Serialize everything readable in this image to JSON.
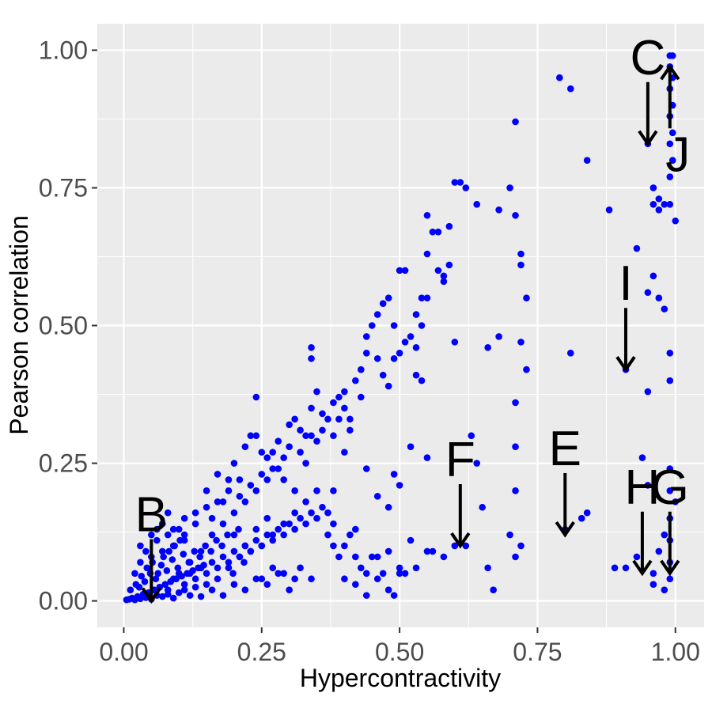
{
  "chart_data": {
    "type": "scatter",
    "title": "",
    "xlabel": "Hypercontractivity",
    "ylabel": "Pearson correlation",
    "xlim": [
      -0.048,
      1.052
    ],
    "ylim": [
      -0.048,
      1.048
    ],
    "grid": true,
    "colors": {
      "point": "#0000ff",
      "panel": "#ebebeb",
      "grid": "#ffffff",
      "annotation": "#000000"
    },
    "x_ticks": [
      {
        "value": 0.0,
        "label": "0.00"
      },
      {
        "value": 0.25,
        "label": "0.25"
      },
      {
        "value": 0.5,
        "label": "0.50"
      },
      {
        "value": 0.75,
        "label": "0.75"
      },
      {
        "value": 1.0,
        "label": "1.00"
      }
    ],
    "y_ticks": [
      {
        "value": 0.0,
        "label": "0.00"
      },
      {
        "value": 0.25,
        "label": "0.25"
      },
      {
        "value": 0.5,
        "label": "0.50"
      },
      {
        "value": 0.75,
        "label": "0.75"
      },
      {
        "value": 1.0,
        "label": "1.00"
      }
    ],
    "annotations": [
      {
        "label": "B",
        "x": 0.05,
        "y": 0.0,
        "direction": "down"
      },
      {
        "label": "C",
        "x": 0.95,
        "y": 0.83,
        "direction": "down"
      },
      {
        "label": "J",
        "x": 0.99,
        "y": 0.97,
        "direction": "up"
      },
      {
        "label": "I",
        "x": 0.91,
        "y": 0.42,
        "direction": "down"
      },
      {
        "label": "F",
        "x": 0.61,
        "y": 0.1,
        "direction": "down"
      },
      {
        "label": "E",
        "x": 0.8,
        "y": 0.12,
        "direction": "down"
      },
      {
        "label": "H",
        "x": 0.94,
        "y": 0.05,
        "direction": "down"
      },
      {
        "label": "G",
        "x": 0.99,
        "y": 0.05,
        "direction": "down"
      }
    ],
    "points": [
      [
        0.005,
        0.002
      ],
      [
        0.01,
        0.003
      ],
      [
        0.015,
        0.005
      ],
      [
        0.02,
        0.002
      ],
      [
        0.025,
        0.008
      ],
      [
        0.03,
        0.004
      ],
      [
        0.035,
        0.012
      ],
      [
        0.04,
        0.006
      ],
      [
        0.045,
        0.015
      ],
      [
        0.05,
        0.003
      ],
      [
        0.055,
        0.02
      ],
      [
        0.06,
        0.01
      ],
      [
        0.065,
        0.025
      ],
      [
        0.07,
        0.008
      ],
      [
        0.075,
        0.03
      ],
      [
        0.08,
        0.012
      ],
      [
        0.085,
        0.035
      ],
      [
        0.09,
        0.005
      ],
      [
        0.095,
        0.04
      ],
      [
        0.1,
        0.015
      ],
      [
        0.105,
        0.045
      ],
      [
        0.11,
        0.02
      ],
      [
        0.115,
        0.05
      ],
      [
        0.12,
        0.01
      ],
      [
        0.125,
        0.055
      ],
      [
        0.13,
        0.025
      ],
      [
        0.135,
        0.06
      ],
      [
        0.14,
        0.008
      ],
      [
        0.145,
        0.065
      ],
      [
        0.15,
        0.03
      ],
      [
        0.012,
        0.02
      ],
      [
        0.022,
        0.03
      ],
      [
        0.032,
        0.045
      ],
      [
        0.042,
        0.06
      ],
      [
        0.052,
        0.07
      ],
      [
        0.062,
        0.05
      ],
      [
        0.072,
        0.08
      ],
      [
        0.082,
        0.09
      ],
      [
        0.092,
        0.1
      ],
      [
        0.102,
        0.11
      ],
      [
        0.028,
        0.025
      ],
      [
        0.038,
        0.035
      ],
      [
        0.048,
        0.05
      ],
      [
        0.058,
        0.04
      ],
      [
        0.068,
        0.065
      ],
      [
        0.078,
        0.055
      ],
      [
        0.088,
        0.075
      ],
      [
        0.098,
        0.06
      ],
      [
        0.108,
        0.085
      ],
      [
        0.118,
        0.07
      ],
      [
        0.128,
        0.09
      ],
      [
        0.138,
        0.08
      ],
      [
        0.148,
        0.1
      ],
      [
        0.158,
        0.09
      ],
      [
        0.168,
        0.11
      ],
      [
        0.178,
        0.1
      ],
      [
        0.188,
        0.12
      ],
      [
        0.198,
        0.05
      ],
      [
        0.208,
        0.13
      ],
      [
        0.218,
        0.07
      ],
      [
        0.16,
        0.02
      ],
      [
        0.17,
        0.04
      ],
      [
        0.18,
        0.01
      ],
      [
        0.19,
        0.06
      ],
      [
        0.2,
        0.03
      ],
      [
        0.21,
        0.08
      ],
      [
        0.22,
        0.02
      ],
      [
        0.23,
        0.09
      ],
      [
        0.24,
        0.04
      ],
      [
        0.25,
        0.1
      ],
      [
        0.26,
        0.03
      ],
      [
        0.27,
        0.12
      ],
      [
        0.28,
        0.05
      ],
      [
        0.29,
        0.14
      ],
      [
        0.3,
        0.02
      ],
      [
        0.31,
        0.16
      ],
      [
        0.32,
        0.06
      ],
      [
        0.33,
        0.18
      ],
      [
        0.34,
        0.04
      ],
      [
        0.35,
        0.2
      ],
      [
        0.03,
        0.1
      ],
      [
        0.05,
        0.12
      ],
      [
        0.07,
        0.14
      ],
      [
        0.09,
        0.13
      ],
      [
        0.11,
        0.15
      ],
      [
        0.13,
        0.16
      ],
      [
        0.15,
        0.17
      ],
      [
        0.17,
        0.18
      ],
      [
        0.19,
        0.2
      ],
      [
        0.21,
        0.22
      ],
      [
        0.1,
        0.05
      ],
      [
        0.12,
        0.07
      ],
      [
        0.14,
        0.09
      ],
      [
        0.16,
        0.12
      ],
      [
        0.18,
        0.14
      ],
      [
        0.2,
        0.16
      ],
      [
        0.22,
        0.18
      ],
      [
        0.24,
        0.2
      ],
      [
        0.26,
        0.22
      ],
      [
        0.28,
        0.24
      ],
      [
        0.23,
        0.3
      ],
      [
        0.25,
        0.27
      ],
      [
        0.27,
        0.27
      ],
      [
        0.29,
        0.26
      ],
      [
        0.3,
        0.32
      ],
      [
        0.31,
        0.33
      ],
      [
        0.32,
        0.31
      ],
      [
        0.33,
        0.3
      ],
      [
        0.34,
        0.35
      ],
      [
        0.35,
        0.29
      ],
      [
        0.24,
        0.37
      ],
      [
        0.34,
        0.46
      ],
      [
        0.34,
        0.44
      ],
      [
        0.35,
        0.38
      ],
      [
        0.36,
        0.34
      ],
      [
        0.37,
        0.33
      ],
      [
        0.38,
        0.36
      ],
      [
        0.39,
        0.37
      ],
      [
        0.4,
        0.35
      ],
      [
        0.41,
        0.33
      ],
      [
        0.2,
        0.25
      ],
      [
        0.22,
        0.28
      ],
      [
        0.24,
        0.3
      ],
      [
        0.26,
        0.26
      ],
      [
        0.28,
        0.29
      ],
      [
        0.3,
        0.28
      ],
      [
        0.32,
        0.27
      ],
      [
        0.34,
        0.3
      ],
      [
        0.36,
        0.31
      ],
      [
        0.38,
        0.3
      ],
      [
        0.4,
        0.38
      ],
      [
        0.42,
        0.4
      ],
      [
        0.43,
        0.42
      ],
      [
        0.44,
        0.45
      ],
      [
        0.45,
        0.5
      ],
      [
        0.46,
        0.52
      ],
      [
        0.47,
        0.54
      ],
      [
        0.48,
        0.55
      ],
      [
        0.49,
        0.5
      ],
      [
        0.5,
        0.6
      ],
      [
        0.51,
        0.6
      ],
      [
        0.52,
        0.48
      ],
      [
        0.53,
        0.46
      ],
      [
        0.54,
        0.5
      ],
      [
        0.55,
        0.7
      ],
      [
        0.56,
        0.67
      ],
      [
        0.57,
        0.67
      ],
      [
        0.58,
        0.59
      ],
      [
        0.59,
        0.61
      ],
      [
        0.6,
        0.76
      ],
      [
        0.61,
        0.76
      ],
      [
        0.62,
        0.75
      ],
      [
        0.64,
        0.72
      ],
      [
        0.68,
        0.71
      ],
      [
        0.7,
        0.75
      ],
      [
        0.71,
        0.7
      ],
      [
        0.71,
        0.87
      ],
      [
        0.72,
        0.63
      ],
      [
        0.72,
        0.61
      ],
      [
        0.73,
        0.55
      ],
      [
        0.79,
        0.95
      ],
      [
        0.81,
        0.93
      ],
      [
        0.84,
        0.8
      ],
      [
        0.88,
        0.71
      ],
      [
        0.96,
        0.72
      ],
      [
        0.97,
        0.71
      ],
      [
        0.98,
        0.72
      ],
      [
        0.99,
        0.72
      ],
      [
        1.0,
        0.69
      ],
      [
        0.99,
        0.77
      ],
      [
        0.99,
        0.99
      ],
      [
        0.995,
        0.99
      ],
      [
        0.99,
        0.97
      ],
      [
        0.995,
        0.95
      ],
      [
        0.99,
        0.93
      ],
      [
        0.995,
        0.9
      ],
      [
        0.99,
        0.88
      ],
      [
        0.995,
        0.85
      ],
      [
        0.99,
        0.83
      ],
      [
        0.995,
        0.8
      ],
      [
        0.95,
        0.83
      ],
      [
        0.96,
        0.75
      ],
      [
        0.97,
        0.73
      ],
      [
        0.93,
        0.64
      ],
      [
        0.95,
        0.56
      ],
      [
        0.96,
        0.59
      ],
      [
        0.97,
        0.55
      ],
      [
        0.98,
        0.53
      ],
      [
        0.99,
        0.45
      ],
      [
        0.99,
        0.4
      ],
      [
        0.95,
        0.38
      ],
      [
        0.91,
        0.42
      ],
      [
        0.81,
        0.45
      ],
      [
        0.72,
        0.47
      ],
      [
        0.71,
        0.36
      ],
      [
        0.68,
        0.48
      ],
      [
        0.66,
        0.46
      ],
      [
        0.73,
        0.42
      ],
      [
        0.63,
        0.3
      ],
      [
        0.64,
        0.25
      ],
      [
        0.71,
        0.28
      ],
      [
        0.71,
        0.2
      ],
      [
        0.7,
        0.12
      ],
      [
        0.71,
        0.08
      ],
      [
        0.72,
        0.1
      ],
      [
        0.65,
        0.17
      ],
      [
        0.66,
        0.06
      ],
      [
        0.67,
        0.02
      ],
      [
        0.62,
        0.1
      ],
      [
        0.6,
        0.1
      ],
      [
        0.58,
        0.08
      ],
      [
        0.56,
        0.09
      ],
      [
        0.55,
        0.09
      ],
      [
        0.53,
        0.06
      ],
      [
        0.52,
        0.11
      ],
      [
        0.51,
        0.05
      ],
      [
        0.5,
        0.06
      ],
      [
        0.49,
        0.01
      ],
      [
        0.48,
        0.09
      ],
      [
        0.47,
        0.05
      ],
      [
        0.46,
        0.08
      ],
      [
        0.45,
        0.08
      ],
      [
        0.44,
        0.01
      ],
      [
        0.43,
        0.06
      ],
      [
        0.42,
        0.08
      ],
      [
        0.41,
        0.12
      ],
      [
        0.4,
        0.1
      ],
      [
        0.39,
        0.08
      ],
      [
        0.38,
        0.14
      ],
      [
        0.37,
        0.16
      ],
      [
        0.55,
        0.26
      ],
      [
        0.52,
        0.28
      ],
      [
        0.5,
        0.21
      ],
      [
        0.49,
        0.23
      ],
      [
        0.48,
        0.17
      ],
      [
        0.46,
        0.19
      ],
      [
        0.44,
        0.24
      ],
      [
        0.42,
        0.13
      ],
      [
        0.4,
        0.27
      ],
      [
        0.38,
        0.2
      ],
      [
        0.8,
        0.13
      ],
      [
        0.83,
        0.15
      ],
      [
        0.84,
        0.16
      ],
      [
        0.89,
        0.06
      ],
      [
        0.91,
        0.06
      ],
      [
        0.93,
        0.08
      ],
      [
        0.94,
        0.26
      ],
      [
        0.95,
        0.21
      ],
      [
        0.96,
        0.03
      ],
      [
        0.96,
        0.05
      ],
      [
        0.97,
        0.09
      ],
      [
        0.98,
        0.02
      ],
      [
        0.98,
        0.12
      ],
      [
        0.99,
        0.04
      ],
      [
        0.99,
        0.24
      ],
      [
        0.99,
        0.2
      ],
      [
        0.99,
        0.15
      ],
      [
        0.99,
        0.11
      ],
      [
        0.99,
        0.07
      ],
      [
        1.0,
        0.18
      ],
      [
        0.15,
        0.2
      ],
      [
        0.17,
        0.23
      ],
      [
        0.19,
        0.22
      ],
      [
        0.21,
        0.19
      ],
      [
        0.23,
        0.21
      ],
      [
        0.25,
        0.23
      ],
      [
        0.27,
        0.24
      ],
      [
        0.29,
        0.22
      ],
      [
        0.31,
        0.2
      ],
      [
        0.33,
        0.25
      ],
      [
        0.06,
        0.13
      ],
      [
        0.08,
        0.16
      ],
      [
        0.11,
        0.12
      ],
      [
        0.13,
        0.14
      ],
      [
        0.16,
        0.15
      ],
      [
        0.18,
        0.18
      ],
      [
        0.2,
        0.12
      ],
      [
        0.22,
        0.1
      ],
      [
        0.24,
        0.13
      ],
      [
        0.26,
        0.15
      ],
      [
        0.08,
        0.02
      ],
      [
        0.09,
        0.04
      ],
      [
        0.11,
        0.03
      ],
      [
        0.12,
        0.05
      ],
      [
        0.13,
        0.04
      ],
      [
        0.14,
        0.06
      ],
      [
        0.15,
        0.05
      ],
      [
        0.16,
        0.07
      ],
      [
        0.17,
        0.06
      ],
      [
        0.18,
        0.08
      ],
      [
        0.19,
        0.07
      ],
      [
        0.2,
        0.09
      ],
      [
        0.21,
        0.08
      ],
      [
        0.22,
        0.1
      ],
      [
        0.23,
        0.09
      ],
      [
        0.24,
        0.11
      ],
      [
        0.25,
        0.1
      ],
      [
        0.26,
        0.12
      ],
      [
        0.27,
        0.11
      ],
      [
        0.28,
        0.13
      ],
      [
        0.29,
        0.12
      ],
      [
        0.3,
        0.14
      ],
      [
        0.31,
        0.13
      ],
      [
        0.32,
        0.15
      ],
      [
        0.33,
        0.14
      ],
      [
        0.34,
        0.16
      ],
      [
        0.35,
        0.15
      ],
      [
        0.36,
        0.17
      ],
      [
        0.37,
        0.12
      ],
      [
        0.38,
        0.1
      ],
      [
        0.02,
        0.05
      ],
      [
        0.03,
        0.07
      ],
      [
        0.04,
        0.09
      ],
      [
        0.05,
        0.08
      ],
      [
        0.06,
        0.11
      ],
      [
        0.07,
        0.09
      ],
      [
        0.08,
        0.12
      ],
      [
        0.09,
        0.1
      ],
      [
        0.1,
        0.13
      ],
      [
        0.11,
        0.11
      ],
      [
        0.4,
        0.04
      ],
      [
        0.42,
        0.03
      ],
      [
        0.44,
        0.05
      ],
      [
        0.46,
        0.04
      ],
      [
        0.48,
        0.02
      ],
      [
        0.5,
        0.05
      ],
      [
        0.31,
        0.04
      ],
      [
        0.29,
        0.05
      ],
      [
        0.27,
        0.06
      ],
      [
        0.25,
        0.04
      ],
      [
        0.44,
        0.48
      ],
      [
        0.46,
        0.44
      ],
      [
        0.47,
        0.41
      ],
      [
        0.48,
        0.39
      ],
      [
        0.49,
        0.44
      ],
      [
        0.5,
        0.45
      ],
      [
        0.51,
        0.47
      ],
      [
        0.53,
        0.41
      ],
      [
        0.54,
        0.4
      ],
      [
        0.55,
        0.55
      ],
      [
        0.54,
        0.55
      ],
      [
        0.53,
        0.52
      ],
      [
        0.55,
        0.63
      ],
      [
        0.57,
        0.6
      ],
      [
        0.58,
        0.58
      ],
      [
        0.59,
        0.68
      ],
      [
        0.6,
        0.47
      ],
      [
        0.43,
        0.37
      ],
      [
        0.41,
        0.31
      ],
      [
        0.39,
        0.33
      ]
    ]
  }
}
